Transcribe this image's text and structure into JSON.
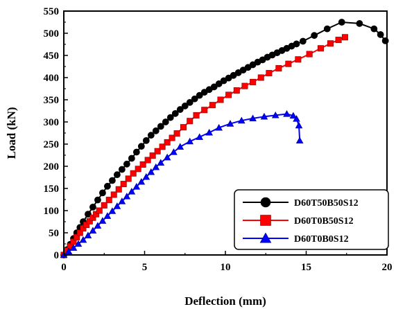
{
  "chart_data": {
    "type": "line",
    "xlabel": "Deflection (mm)",
    "ylabel": "Load (kN)",
    "xlim": [
      0,
      20
    ],
    "ylim": [
      0,
      550
    ],
    "xticks": [
      0,
      5,
      10,
      15,
      20
    ],
    "yticks": [
      0,
      50,
      100,
      150,
      200,
      250,
      300,
      350,
      400,
      450,
      500,
      550
    ],
    "grid": false,
    "legend_position": "bottom-right",
    "series": [
      {
        "name": "D60T50B50S12",
        "color": "#000000",
        "marker": "circle",
        "x": [
          0,
          0.2,
          0.4,
          0.6,
          0.8,
          1.0,
          1.2,
          1.5,
          1.8,
          2.1,
          2.4,
          2.7,
          3.0,
          3.3,
          3.6,
          3.9,
          4.2,
          4.5,
          4.8,
          5.1,
          5.4,
          5.7,
          6.0,
          6.3,
          6.6,
          6.9,
          7.2,
          7.5,
          7.8,
          8.1,
          8.4,
          8.7,
          9.0,
          9.3,
          9.6,
          9.9,
          10.2,
          10.5,
          10.8,
          11.1,
          11.4,
          11.7,
          12.0,
          12.3,
          12.6,
          12.9,
          13.2,
          13.5,
          13.8,
          14.1,
          14.4,
          14.8,
          15.5,
          16.3,
          17.2,
          18.3,
          19.2,
          19.6,
          19.9
        ],
        "y": [
          0,
          12,
          24,
          37,
          50,
          62,
          75,
          92,
          108,
          124,
          140,
          155,
          168,
          181,
          193,
          205,
          218,
          232,
          245,
          258,
          270,
          280,
          290,
          300,
          310,
          319,
          328,
          336,
          344,
          352,
          360,
          367,
          373,
          379,
          386,
          393,
          399,
          405,
          411,
          417,
          423,
          429,
          435,
          440,
          446,
          451,
          456,
          461,
          466,
          471,
          476,
          482,
          495,
          510,
          525,
          522,
          510,
          497,
          483
        ]
      },
      {
        "name": "D60T0B50S12",
        "color": "#ff0000",
        "marker": "square",
        "x": [
          0,
          0.2,
          0.4,
          0.6,
          0.8,
          1.0,
          1.2,
          1.4,
          1.6,
          1.8,
          2.0,
          2.2,
          2.5,
          2.8,
          3.1,
          3.4,
          3.7,
          4.0,
          4.3,
          4.6,
          4.9,
          5.2,
          5.5,
          5.8,
          6.1,
          6.4,
          6.7,
          7.0,
          7.4,
          7.8,
          8.2,
          8.7,
          9.2,
          9.7,
          10.2,
          10.7,
          11.2,
          11.7,
          12.2,
          12.7,
          13.3,
          13.9,
          14.5,
          15.2,
          15.9,
          16.5,
          17.0,
          17.4
        ],
        "y": [
          0,
          10,
          20,
          30,
          40,
          50,
          60,
          68,
          76,
          84,
          92,
          100,
          112,
          124,
          136,
          148,
          160,
          172,
          184,
          194,
          204,
          214,
          224,
          234,
          244,
          254,
          264,
          274,
          288,
          302,
          315,
          327,
          338,
          350,
          361,
          371,
          381,
          390,
          400,
          410,
          421,
          431,
          441,
          453,
          466,
          477,
          485,
          491
        ]
      },
      {
        "name": "D60T0B0S12",
        "color": "#0000ff",
        "marker": "triangle",
        "x": [
          0,
          0.3,
          0.6,
          0.9,
          1.2,
          1.5,
          1.8,
          2.1,
          2.4,
          2.7,
          3.0,
          3.3,
          3.6,
          3.9,
          4.2,
          4.5,
          4.8,
          5.1,
          5.4,
          5.7,
          6.0,
          6.4,
          6.8,
          7.2,
          7.8,
          8.4,
          9.0,
          9.6,
          10.3,
          11.0,
          11.7,
          12.4,
          13.1,
          13.8,
          14.2,
          14.4,
          14.55,
          14.6
        ],
        "y": [
          0,
          8,
          16,
          25,
          34,
          44,
          55,
          66,
          77,
          88,
          99,
          110,
          121,
          132,
          143,
          154,
          165,
          176,
          187,
          198,
          208,
          220,
          232,
          244,
          256,
          266,
          276,
          287,
          296,
          303,
          308,
          312,
          315,
          318,
          314,
          307,
          292,
          258
        ]
      }
    ]
  }
}
